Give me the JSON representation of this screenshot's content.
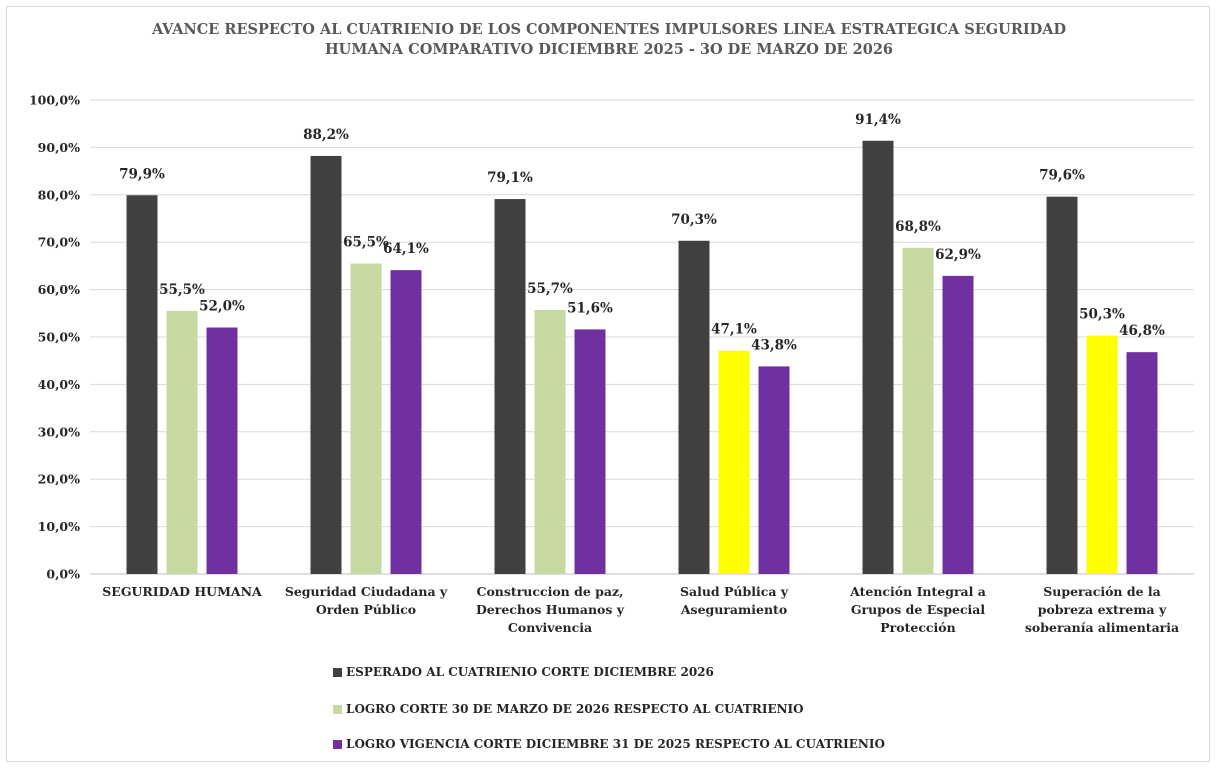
{
  "colors": {
    "esperado": "#404040",
    "logro_marzo": "#c5d9a0",
    "logro_marzo_highlight": "#ffff00",
    "logro_vigencia": "#7030a0",
    "grid": "#d9d9d9",
    "axis": "#bfbfbf"
  },
  "chart_data": {
    "type": "bar",
    "title_lines": [
      "AVANCE RESPECTO AL CUATRIENIO DE LOS COMPONENTES IMPULSORES LINEA ESTRATEGICA SEGURIDAD",
      "HUMANA COMPARATIVO  DICIEMBRE 2025 - 3O DE MARZO DE 2026"
    ],
    "categories": [
      [
        "SEGURIDAD HUMANA"
      ],
      [
        "Seguridad Ciudadana y",
        "Orden Público"
      ],
      [
        "Construccion de paz,",
        "Derechos Humanos y",
        "Convivencia"
      ],
      [
        "Salud Pública y",
        "Aseguramiento"
      ],
      [
        "Atención Integral a",
        "Grupos de Especial",
        "Protección"
      ],
      [
        "Superación de la",
        "pobreza extrema y",
        "soberanía alimentaria"
      ]
    ],
    "series": [
      {
        "name": "ESPERADO  AL CUATRIENIO CORTE DICIEMBRE 2026",
        "values": [
          79.9,
          88.2,
          79.1,
          70.3,
          91.4,
          79.6
        ],
        "labels": [
          "79,9%",
          "88,2%",
          "79,1%",
          "70,3%",
          "91,4%",
          "79,6%"
        ]
      },
      {
        "name": "LOGRO  CORTE  30 DE MARZO DE 2026 RESPECTO AL CUATRIENIO",
        "values": [
          55.5,
          65.5,
          55.7,
          47.1,
          68.8,
          50.3
        ],
        "labels": [
          "55,5%",
          "65,5%",
          "55,7%",
          "47,1%",
          "68,8%",
          "50,3%"
        ],
        "highlighted_bars": [
          3,
          5
        ]
      },
      {
        "name": "LOGRO VIGENCIA  CORTE DICIEMBRE 31 DE 2025 RESPECTO AL CUATRIENIO",
        "values": [
          52.0,
          64.1,
          51.6,
          43.8,
          62.9,
          46.8
        ],
        "labels": [
          "52,0%",
          "64,1%",
          "51,6%",
          "43,8%",
          "62,9%",
          "46,8%"
        ]
      }
    ],
    "yticks": [
      "0,0%",
      "10,0%",
      "20,0%",
      "30,0%",
      "40,0%",
      "50,0%",
      "60,0%",
      "70,0%",
      "80,0%",
      "90,0%",
      "100,0%"
    ],
    "ylim": [
      0,
      100
    ],
    "grid": true,
    "legend_position": "bottom"
  }
}
